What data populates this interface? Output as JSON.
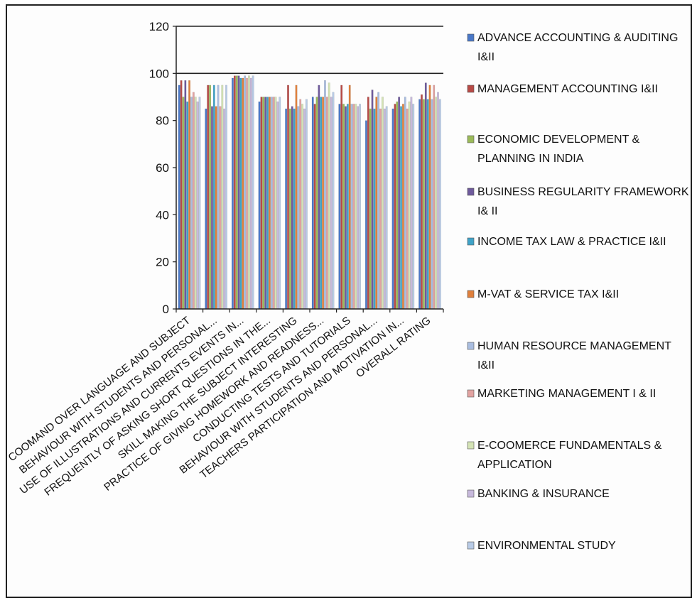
{
  "chart_data": {
    "type": "bar",
    "title": "",
    "xlabel": "",
    "ylabel": "",
    "ylim": [
      0,
      120
    ],
    "y_ticks": [
      "0",
      "20",
      "40",
      "60",
      "80",
      "100",
      "120"
    ],
    "grid": "horizontal major lines at 100 and 120",
    "legend_position": "right",
    "categories": [
      "COOMAND OVER LANGUAGE AND SUBJECT",
      "BEHAVIOUR WITH STUDENTS AND PERSONAL...",
      "USE OF ILLUSTRATIONS AND CURRENTS EVENTS IN...",
      "FREQUENTLY OF ASKING SHORT QUESTIONS IN THE...",
      "SKILL MAKING THE SUBJECT INTERESTING",
      "PRACTICE OF GIVING HOMEWORK AND READNESS...",
      "CONDUCTING TESTS AND TUTORIALS",
      "BEHAVIOUR WITH STUDENTS AND PERSONAL...",
      "TEACHERS PARTICIPATION AND MOTIVATION IN...",
      "OVERALL RATING"
    ],
    "series": [
      {
        "name": "ADVANCE ACCOUNTING & AUDITING I&II",
        "color": "#4a78c8",
        "values": [
          95,
          85,
          98,
          88,
          85,
          90,
          87,
          80,
          85,
          89
        ]
      },
      {
        "name": "MANAGEMENT ACCOUNTING I&II",
        "color": "#b84a46",
        "values": [
          97,
          95,
          99,
          90,
          95,
          87,
          95,
          90,
          87,
          91
        ]
      },
      {
        "name": "ECONOMIC DEVELOPMENT & PLANNING IN INDIA",
        "color": "#9bbb59",
        "values": [
          90,
          95,
          99,
          90,
          85,
          90,
          87,
          85,
          88,
          89
        ]
      },
      {
        "name": "BUSINESS REGULARITY FRAMEWORK I& II",
        "color": "#6e5a9c",
        "values": [
          97,
          86,
          99,
          90,
          86,
          95,
          86,
          93,
          90,
          96
        ]
      },
      {
        "name": "INCOME TAX LAW & PRACTICE I&II",
        "color": "#3fa3c8",
        "values": [
          88,
          95,
          98,
          90,
          85,
          90,
          87,
          85,
          86,
          89
        ]
      },
      {
        "name": "M-VAT & SERVICE TAX I&II",
        "color": "#e0803c",
        "values": [
          97,
          86,
          98,
          90,
          95,
          90,
          95,
          90,
          87,
          95
        ]
      },
      {
        "name": "HUMAN RESOURCE MANAGEMENT I&II",
        "color": "#a9bde0",
        "values": [
          90,
          95,
          99,
          90,
          86,
          97,
          87,
          92,
          90,
          89
        ]
      },
      {
        "name": "MARKETING MANAGEMENT I & II",
        "color": "#e2a3a1",
        "values": [
          92,
          86,
          98,
          90,
          89,
          90,
          87,
          85,
          85,
          95
        ]
      },
      {
        "name": "E-COOMERCE FUNDAMENTALS & APPLICATION",
        "color": "#d4e3b5",
        "values": [
          90,
          95,
          99,
          90,
          87,
          96,
          87,
          90,
          88,
          90
        ]
      },
      {
        "name": "BANKING & INSURANCE",
        "color": "#c7b9dc",
        "values": [
          88,
          85,
          98,
          88,
          85,
          90,
          86,
          85,
          90,
          92
        ]
      },
      {
        "name": "ENVIRONMENTAL STUDY",
        "color": "#b8cbe6",
        "values": [
          90,
          95,
          99,
          90,
          89,
          92,
          87,
          86,
          87,
          89
        ]
      }
    ],
    "legend_lines": [
      [
        "ADVANCE ACCOUNTING & AUDITING",
        "I&II"
      ],
      [
        "MANAGEMENT ACCOUNTING I&II"
      ],
      [
        "ECONOMIC DEVELOPMENT &",
        "PLANNING IN INDIA"
      ],
      [
        "BUSINESS REGULARITY FRAMEWORK",
        "I& II"
      ],
      [
        "INCOME TAX LAW & PRACTICE I&II"
      ],
      [
        "M-VAT & SERVICE TAX I&II"
      ],
      [
        "HUMAN RESOURCE MANAGEMENT",
        "I&II"
      ],
      [
        "MARKETING MANAGEMENT I & II"
      ],
      [
        "E-COOMERCE FUNDAMENTALS &",
        "APPLICATION"
      ],
      [
        "BANKING & INSURANCE"
      ],
      [
        "ENVIRONMENTAL STUDY"
      ]
    ]
  }
}
